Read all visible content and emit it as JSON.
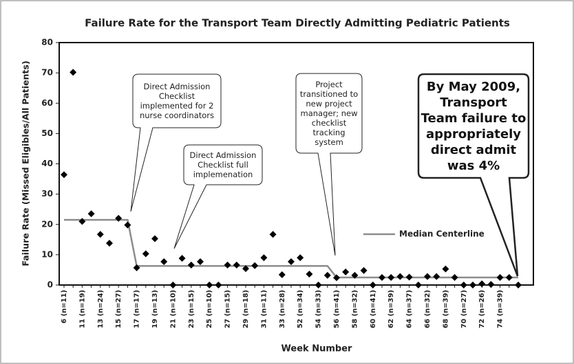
{
  "chart_data": {
    "type": "scatter",
    "title": "Failure Rate for the Transport Team Directly Admitting Pediatric Patients",
    "x_label": "Week Number",
    "y_label": "Failure Rate (Missed Eligibles/All Patients)",
    "categories": [
      "6 (n=11)",
      null,
      "11 (n=19)",
      null,
      "13 (n=24)",
      null,
      "15 (n=27)",
      null,
      "17 (n=17)",
      null,
      "19 (n=13)",
      null,
      "21 (n=10)",
      null,
      "23 (n=15)",
      null,
      "25 (n=10)",
      null,
      "27 (n=15)",
      null,
      "29 (n=18)",
      null,
      "31 (n=11)",
      null,
      "33 (n=28)",
      null,
      "52 (n=34)",
      null,
      "54 (n=33)",
      null,
      "56 (n=41)",
      null,
      "58 (n=32)",
      null,
      "60 (n=41)",
      null,
      "62 (n=39)",
      null,
      "64 (n=37)",
      null,
      "66 (n=32)",
      null,
      "68 (n=39)",
      null,
      "70 (n=27)",
      null,
      "72 (n=26)",
      null,
      "74 (n=39)",
      null,
      null
    ],
    "values": [
      36.4,
      70.2,
      21,
      23.5,
      16.7,
      13.8,
      22,
      19.8,
      5.7,
      10.3,
      15.3,
      7.7,
      0,
      8.8,
      6.6,
      7.7,
      0,
      0,
      6.6,
      6.6,
      5.4,
      6.4,
      9,
      16.7,
      3.4,
      7.7,
      9,
      3.6,
      0,
      3.2,
      2.4,
      4.3,
      3.2,
      4.8,
      0,
      2.5,
      2.5,
      2.8,
      2.6,
      0,
      2.8,
      2.8,
      5.3,
      2.5,
      0,
      0,
      0.4,
      0.2,
      2.5,
      2.5,
      0
    ],
    "color": "#000000",
    "series": [
      {
        "name": "Median Centerline",
        "color": "#8c8c8c",
        "values": [
          21.5,
          21.5,
          21.5,
          21.5,
          21.5,
          21.5,
          21.5,
          21.5,
          6.3,
          6.3,
          6.3,
          6.3,
          6.3,
          6.3,
          6.3,
          6.3,
          6.3,
          6.3,
          6.3,
          6.3,
          6.3,
          6.3,
          6.3,
          6.3,
          6.3,
          6.3,
          6.3,
          6.3,
          6.3,
          6.3,
          2.5,
          2.5,
          2.5,
          2.5,
          2.5,
          2.5,
          2.5,
          2.5,
          2.5,
          2.5,
          2.5,
          2.5,
          2.5,
          2.5,
          2.5,
          2.5,
          2.5,
          2.5,
          2.5,
          2.5,
          2.5
        ]
      }
    ],
    "ylim": [
      0,
      80
    ],
    "yticks": [
      0,
      10,
      20,
      30,
      40,
      50,
      60,
      70,
      80
    ],
    "annotations": [
      "Direct Admission Checklist implemented for 2 nurse coordinators",
      "Direct Admission Checklist full implemenation",
      "Project transitioned to new project manager; new checklist tracking system",
      "By May 2009, Transport Team failure to appropriately direct admit was 4%"
    ]
  }
}
